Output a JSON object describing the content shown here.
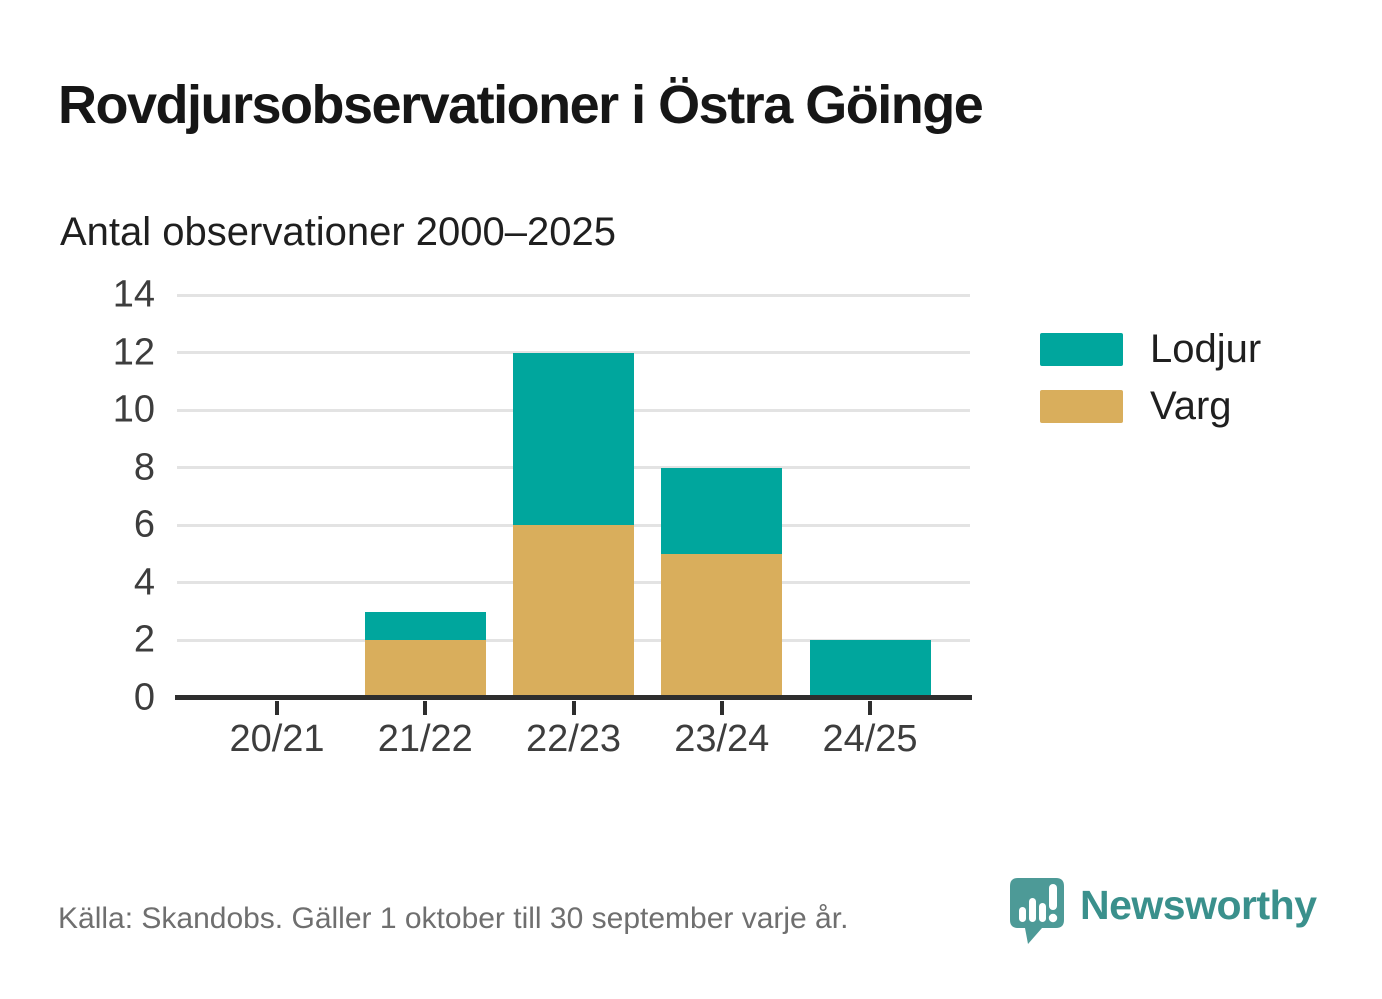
{
  "header": {
    "title": "Rovdjursobservationer i Östra Göinge",
    "subtitle": "Antal observationer 2000–2025"
  },
  "chart_data": {
    "type": "bar",
    "stacked": true,
    "title": "Rovdjursobservationer i Östra Göinge",
    "subtitle": "Antal observationer 2000–2025",
    "categories": [
      "20/21",
      "21/22",
      "22/23",
      "23/24",
      "24/25"
    ],
    "series": [
      {
        "name": "Varg",
        "color": "#d9ae5c",
        "values": [
          0,
          2,
          6,
          5,
          0
        ]
      },
      {
        "name": "Lodjur",
        "color": "#00a69d",
        "values": [
          0,
          1,
          6,
          3,
          2
        ]
      }
    ],
    "xlabel": "",
    "ylabel": "",
    "ylim": [
      0,
      14
    ],
    "yticks": [
      0,
      2,
      4,
      6,
      8,
      10,
      12,
      14
    ],
    "grid": "horizontal",
    "legend_position": "right"
  },
  "legend": {
    "items": [
      {
        "label": "Lodjur",
        "color": "#00a69d"
      },
      {
        "label": "Varg",
        "color": "#d9ae5c"
      }
    ]
  },
  "footer": {
    "source": "Källa: Skandobs. Gäller 1 oktober till 30 september varje år.",
    "brand": "Newsworthy"
  },
  "colors": {
    "lodjur": "#00a69d",
    "varg": "#d9ae5c",
    "gridline": "#e3e3e3",
    "axis": "#2e2e2e",
    "axis_text": "#3d3d3d",
    "source_text": "#6f6f6f",
    "brand_teal": "#3a908c",
    "logo_bubble": "#4d9a97"
  }
}
